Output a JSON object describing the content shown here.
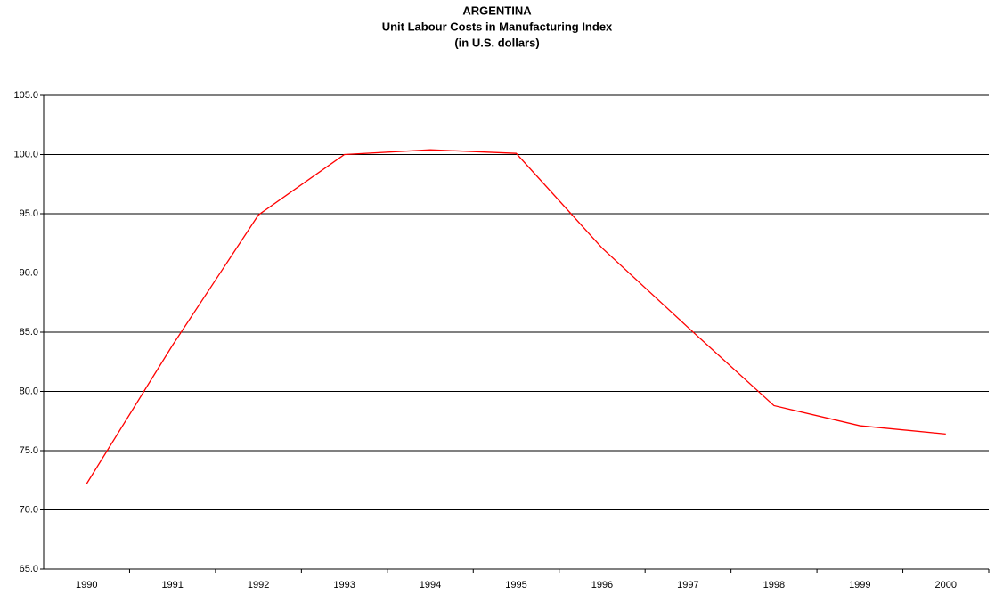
{
  "chart_data": {
    "type": "line",
    "title": "ARGENTINA",
    "subtitle": "Unit Labour Costs in Manufacturing Index",
    "subtitle2": "(in U.S. dollars)",
    "categories": [
      "1990",
      "1991",
      "1992",
      "1993",
      "1994",
      "1995",
      "1996",
      "1997",
      "1998",
      "1999",
      "2000"
    ],
    "series": [
      {
        "color": "#ff0000",
        "values": [
          72.2,
          83.9,
          94.9,
          100.0,
          100.4,
          100.1,
          92.1,
          85.4,
          78.8,
          77.1,
          76.4
        ]
      }
    ],
    "ylim": [
      65,
      105
    ],
    "yticks": [
      {
        "value": 65,
        "label": "65.0"
      },
      {
        "value": 70,
        "label": "70.0"
      },
      {
        "value": 75,
        "label": "75.0"
      },
      {
        "value": 80,
        "label": "80.0"
      },
      {
        "value": 85,
        "label": "85.0"
      },
      {
        "value": 90,
        "label": "90.0"
      },
      {
        "value": 95,
        "label": "95.0"
      },
      {
        "value": 100,
        "label": "100.0"
      },
      {
        "value": 105,
        "label": "105.0"
      }
    ],
    "grid": true
  }
}
